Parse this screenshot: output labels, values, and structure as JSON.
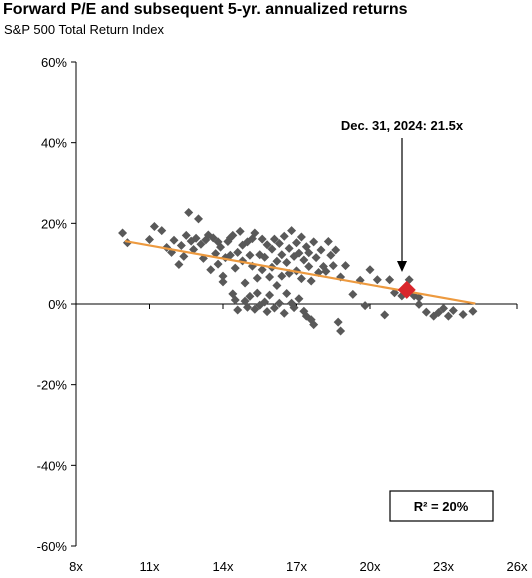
{
  "chart_data": {
    "type": "scatter",
    "title": "Forward P/E and subsequent 5-yr. annualized returns",
    "subtitle": "S&P 500 Total Return Index",
    "xlabel": "",
    "ylabel": "",
    "xlim": [
      8,
      26
    ],
    "ylim": [
      -60,
      60
    ],
    "x_ticks": [
      8,
      11,
      14,
      17,
      20,
      23,
      26
    ],
    "x_tick_labels": [
      "8x",
      "11x",
      "14x",
      "17x",
      "20x",
      "23x",
      "26x"
    ],
    "y_ticks": [
      60,
      40,
      20,
      0,
      -20,
      -40,
      -60
    ],
    "y_tick_labels": [
      "60%",
      "40%",
      "20%",
      "0%",
      "-20%",
      "-40%",
      "-60%"
    ],
    "grid": false,
    "colors": {
      "points": "#595959",
      "trendline": "#ED9A3F",
      "highlight": "#D9262B"
    },
    "series": [
      {
        "type": "scatter",
        "points": [
          [
            9.9,
            17.6
          ],
          [
            10.1,
            15.2
          ],
          [
            11.0,
            16.0
          ],
          [
            11.2,
            19.2
          ],
          [
            11.5,
            18.2
          ],
          [
            11.7,
            14.0
          ],
          [
            11.9,
            12.8
          ],
          [
            12.0,
            15.8
          ],
          [
            12.2,
            9.8
          ],
          [
            12.3,
            14.5
          ],
          [
            12.4,
            11.8
          ],
          [
            12.5,
            17.0
          ],
          [
            12.6,
            22.7
          ],
          [
            12.7,
            15.6
          ],
          [
            12.8,
            13.5
          ],
          [
            12.9,
            16.3
          ],
          [
            13.0,
            21.1
          ],
          [
            13.1,
            14.8
          ],
          [
            13.2,
            11.3
          ],
          [
            13.3,
            15.9
          ],
          [
            13.4,
            17.1
          ],
          [
            13.5,
            8.5
          ],
          [
            13.6,
            16.4
          ],
          [
            13.7,
            12.5
          ],
          [
            13.8,
            9.9
          ],
          [
            13.9,
            14.1
          ],
          [
            14.0,
            6.9
          ],
          [
            14.0,
            5.5
          ],
          [
            14.1,
            11.5
          ],
          [
            14.2,
            15.5
          ],
          [
            13.8,
            15.4
          ],
          [
            14.3,
            12.1
          ],
          [
            14.3,
            16.4
          ],
          [
            14.4,
            17.0
          ],
          [
            14.4,
            2.5
          ],
          [
            14.5,
            8.9
          ],
          [
            14.5,
            1.0
          ],
          [
            14.6,
            12.8
          ],
          [
            14.6,
            -1.5
          ],
          [
            14.7,
            18.0
          ],
          [
            14.8,
            14.6
          ],
          [
            14.8,
            10.7
          ],
          [
            14.9,
            5.2
          ],
          [
            14.9,
            0.7
          ],
          [
            15.0,
            15.4
          ],
          [
            15.0,
            -0.8
          ],
          [
            15.1,
            12.1
          ],
          [
            15.1,
            1.9
          ],
          [
            15.2,
            16.2
          ],
          [
            15.2,
            9.4
          ],
          [
            15.3,
            -1.3
          ],
          [
            15.3,
            17.6
          ],
          [
            15.4,
            6.4
          ],
          [
            15.4,
            2.7
          ],
          [
            15.5,
            12.2
          ],
          [
            15.5,
            -0.3
          ],
          [
            15.6,
            16.1
          ],
          [
            15.6,
            8.5
          ],
          [
            15.7,
            0.5
          ],
          [
            15.7,
            11.6
          ],
          [
            15.8,
            14.7
          ],
          [
            15.8,
            -1.9
          ],
          [
            15.9,
            6.7
          ],
          [
            15.9,
            2.2
          ],
          [
            16.0,
            13.6
          ],
          [
            16.0,
            9.1
          ],
          [
            16.1,
            -1.0
          ],
          [
            16.1,
            16.1
          ],
          [
            16.2,
            10.6
          ],
          [
            16.2,
            4.6
          ],
          [
            16.3,
            15.0
          ],
          [
            16.3,
            0.2
          ],
          [
            16.4,
            12.2
          ],
          [
            16.4,
            6.9
          ],
          [
            16.5,
            -2.3
          ],
          [
            16.5,
            16.8
          ],
          [
            16.6,
            10.3
          ],
          [
            16.6,
            2.6
          ],
          [
            16.7,
            13.8
          ],
          [
            16.7,
            7.6
          ],
          [
            16.8,
            18.2
          ],
          [
            16.8,
            0.2
          ],
          [
            16.9,
            11.8
          ],
          [
            16.9,
            -0.9
          ],
          [
            17.0,
            15.2
          ],
          [
            17.0,
            8.2
          ],
          [
            17.1,
            1.3
          ],
          [
            17.1,
            12.6
          ],
          [
            17.2,
            16.6
          ],
          [
            17.2,
            6.3
          ],
          [
            17.3,
            -1.8
          ],
          [
            17.3,
            10.9
          ],
          [
            17.4,
            14.2
          ],
          [
            17.4,
            -3.0
          ],
          [
            17.5,
            9.3
          ],
          [
            17.5,
            12.7
          ],
          [
            17.6,
            5.7
          ],
          [
            17.6,
            -3.9
          ],
          [
            17.7,
            15.4
          ],
          [
            17.7,
            -5.1
          ],
          [
            17.8,
            11.5
          ],
          [
            17.9,
            7.8
          ],
          [
            18.0,
            13.4
          ],
          [
            18.1,
            9.3
          ],
          [
            18.2,
            8.1
          ],
          [
            18.3,
            15.5
          ],
          [
            18.4,
            12.1
          ],
          [
            18.5,
            9.5
          ],
          [
            18.6,
            13.4
          ],
          [
            18.7,
            -4.5
          ],
          [
            18.8,
            6.7
          ],
          [
            18.8,
            -6.7
          ],
          [
            19.0,
            9.5
          ],
          [
            19.3,
            2.4
          ],
          [
            19.6,
            5.9
          ],
          [
            19.8,
            -0.4
          ],
          [
            20.0,
            8.5
          ],
          [
            20.3,
            6.0
          ],
          [
            20.6,
            -2.7
          ],
          [
            20.8,
            6.0
          ],
          [
            21.0,
            2.8
          ],
          [
            21.3,
            2.0
          ],
          [
            21.6,
            6.0
          ],
          [
            21.8,
            2.0
          ],
          [
            22.0,
            -0.1
          ],
          [
            22.0,
            1.6
          ],
          [
            22.3,
            -2.0
          ],
          [
            22.6,
            -3.0
          ],
          [
            22.8,
            -2.1
          ],
          [
            23.0,
            -1.1
          ],
          [
            23.2,
            -3.0
          ],
          [
            23.4,
            -1.6
          ],
          [
            23.8,
            -2.6
          ],
          [
            24.2,
            -1.8
          ]
        ]
      },
      {
        "type": "line",
        "name": "",
        "points": [
          [
            10.0,
            15.6
          ],
          [
            24.3,
            0.1
          ]
        ]
      },
      {
        "type": "highlight",
        "points": [
          [
            21.5,
            3.5
          ]
        ]
      }
    ],
    "annotations": [
      {
        "text": "Dec. 31, 2024: 21.5x",
        "x": 21.5,
        "y": 3.5
      },
      {
        "text": "R² = 20%"
      }
    ]
  }
}
